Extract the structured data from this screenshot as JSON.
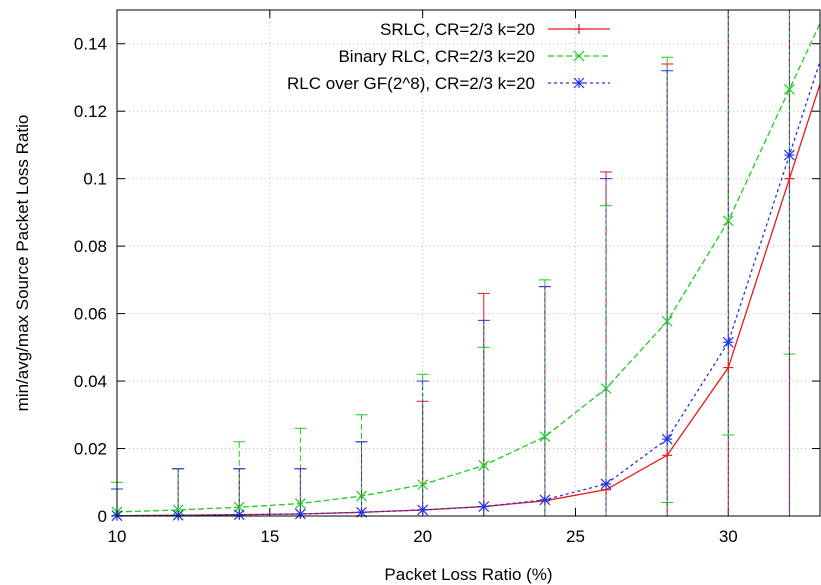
{
  "chart_data": {
    "type": "line",
    "xlabel": "Packet Loss Ratio (%)",
    "ylabel": "min/avg/max Source Packet Loss Ratio",
    "xlim": [
      10,
      33
    ],
    "ylim": [
      0,
      0.15
    ],
    "x_ticks": [
      10,
      15,
      20,
      25,
      30
    ],
    "y_ticks": [
      0,
      0.02,
      0.04,
      0.06,
      0.08,
      0.1,
      0.12,
      0.14
    ],
    "x_tick_labels": [
      "10",
      "15",
      "20",
      "25",
      "30"
    ],
    "y_tick_labels": [
      "0",
      "0.02",
      "0.04",
      "0.06",
      "0.08",
      "0.1",
      "0.12",
      "0.14"
    ],
    "grid": true,
    "legend_position": "top-right",
    "x": [
      10,
      12,
      14,
      16,
      18,
      20,
      22,
      24,
      26,
      28,
      30,
      32
    ],
    "series": [
      {
        "name": "SRLC, CR=2/3 k=20",
        "color": "#e8191c",
        "marker": "plus",
        "dash": "solid",
        "values": [
          0.0001,
          0.0002,
          0.0004,
          0.0006,
          0.0011,
          0.0018,
          0.0028,
          0.0045,
          0.0078,
          0.018,
          0.044,
          0.1
        ],
        "min": [
          0,
          0,
          0,
          0,
          0,
          0,
          0,
          0,
          0,
          0,
          0,
          0
        ],
        "max": [
          0.008,
          0.014,
          0.014,
          0.014,
          0.022,
          0.034,
          0.066,
          0.068,
          0.102,
          0.134,
          0.15,
          0.15
        ]
      },
      {
        "name": "Binary RLC, CR=2/3 k=20",
        "color": "#1ecd1e",
        "marker": "cross",
        "dash": "dashed",
        "values": [
          0.0012,
          0.0018,
          0.0026,
          0.0037,
          0.0059,
          0.0093,
          0.015,
          0.0235,
          0.0378,
          0.0577,
          0.0875,
          0.1265
        ],
        "min": [
          0,
          0,
          0,
          0,
          0,
          0,
          0,
          0,
          0,
          0.004,
          0.024,
          0.048
        ],
        "max": [
          0.01,
          0.014,
          0.022,
          0.026,
          0.03,
          0.042,
          0.05,
          0.07,
          0.092,
          0.136,
          0.15,
          0.15
        ]
      },
      {
        "name": "RLC over GF(2^8), CR=2/3 k=20",
        "color": "#2233e6",
        "marker": "star",
        "dash": "dotted",
        "values": [
          0.0001,
          0.0002,
          0.0004,
          0.0006,
          0.0011,
          0.0018,
          0.0028,
          0.0048,
          0.0095,
          0.0228,
          0.0515,
          0.107
        ],
        "min": [
          0,
          0,
          0,
          0,
          0,
          0,
          0,
          0,
          0,
          0,
          0,
          0
        ],
        "max": [
          0.008,
          0.014,
          0.014,
          0.014,
          0.022,
          0.04,
          0.058,
          0.068,
          0.1,
          0.132,
          0.15,
          0.15
        ]
      }
    ]
  }
}
